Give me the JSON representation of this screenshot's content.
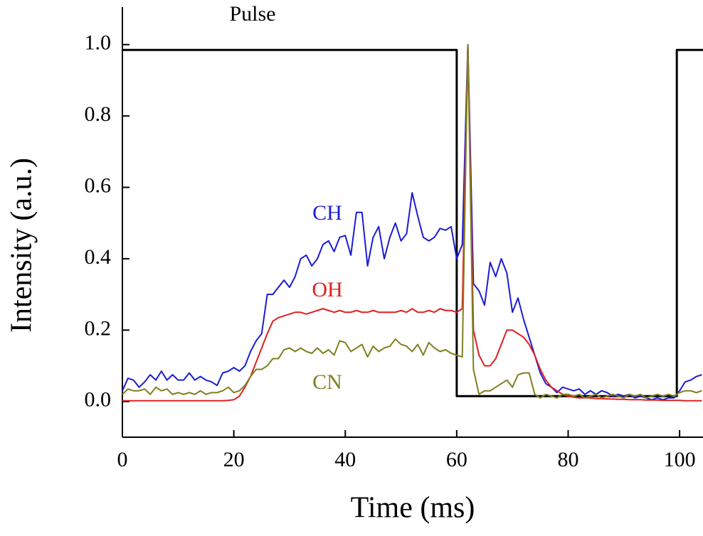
{
  "chart_data": {
    "type": "line",
    "xlabel": "Time (ms)",
    "ylabel": "Intensity (a.u.)",
    "xlim": [
      0,
      104.2
    ],
    "ylim": [
      -0.1,
      1.105
    ],
    "xticks": [
      0,
      20,
      40,
      60,
      80,
      100
    ],
    "yticks": [
      {
        "value": 0,
        "label": "0.0"
      },
      0.2,
      0.4,
      0.6,
      0.8,
      {
        "value": 1,
        "label": "1.0"
      }
    ],
    "x": [
      0,
      1,
      2,
      3,
      4,
      5,
      6,
      7,
      8,
      9,
      10,
      11,
      12,
      13,
      14,
      15,
      16,
      17,
      18,
      19,
      20,
      21,
      22,
      23,
      24,
      25,
      26,
      27,
      28,
      29,
      30,
      31,
      32,
      33,
      34,
      35,
      36,
      37,
      38,
      39,
      40,
      41,
      42,
      43,
      44,
      45,
      46,
      47,
      48,
      49,
      50,
      51,
      52,
      53,
      54,
      55,
      56,
      57,
      58,
      59,
      60,
      61,
      62,
      63,
      64,
      65,
      66,
      67,
      68,
      69,
      70,
      71,
      72,
      73,
      74,
      75,
      76,
      77,
      78,
      79,
      80,
      81,
      82,
      83,
      84,
      85,
      86,
      87,
      88,
      89,
      90,
      91,
      92,
      93,
      94,
      95,
      96,
      97,
      98,
      99,
      100,
      101,
      102,
      103,
      104
    ],
    "series": [
      {
        "name": "Pulse",
        "color": "#000000",
        "x": [
          0,
          60,
          60,
          99.5,
          99.5,
          104.2
        ],
        "values": [
          0.985,
          0.985,
          0.015,
          0.015,
          0.985,
          0.985
        ]
      },
      {
        "name": "CH",
        "color": "#1c1cd6",
        "values": [
          0.03,
          0.065,
          0.06,
          0.04,
          0.055,
          0.075,
          0.06,
          0.085,
          0.06,
          0.075,
          0.06,
          0.06,
          0.08,
          0.06,
          0.07,
          0.06,
          0.055,
          0.045,
          0.08,
          0.085,
          0.095,
          0.085,
          0.1,
          0.14,
          0.17,
          0.19,
          0.3,
          0.3,
          0.32,
          0.34,
          0.32,
          0.35,
          0.4,
          0.41,
          0.38,
          0.4,
          0.44,
          0.45,
          0.42,
          0.46,
          0.465,
          0.41,
          0.53,
          0.53,
          0.38,
          0.46,
          0.49,
          0.4,
          0.46,
          0.5,
          0.45,
          0.47,
          0.585,
          0.52,
          0.46,
          0.45,
          0.46,
          0.485,
          0.48,
          0.49,
          0.4,
          0.44,
          1.0,
          0.33,
          0.31,
          0.27,
          0.39,
          0.35,
          0.4,
          0.36,
          0.25,
          0.29,
          0.23,
          0.18,
          0.13,
          0.08,
          0.05,
          0.04,
          0.025,
          0.04,
          0.035,
          0.03,
          0.035,
          0.02,
          0.03,
          0.02,
          0.03,
          0.025,
          0.015,
          0.02,
          0.015,
          0.02,
          0.01,
          0.015,
          0.01,
          0.005,
          0.01,
          0.005,
          0.01,
          0.01,
          0.03,
          0.055,
          0.06,
          0.07,
          0.075
        ]
      },
      {
        "name": "OH",
        "color": "#e02020",
        "values": [
          0.002,
          0.002,
          0.002,
          0.002,
          0.002,
          0.002,
          0.002,
          0.002,
          0.002,
          0.002,
          0.002,
          0.002,
          0.002,
          0.002,
          0.002,
          0.002,
          0.002,
          0.002,
          0.002,
          0.003,
          0.005,
          0.015,
          0.04,
          0.07,
          0.11,
          0.15,
          0.19,
          0.225,
          0.235,
          0.24,
          0.245,
          0.25,
          0.25,
          0.245,
          0.25,
          0.255,
          0.26,
          0.255,
          0.25,
          0.255,
          0.25,
          0.25,
          0.255,
          0.25,
          0.25,
          0.255,
          0.25,
          0.25,
          0.25,
          0.25,
          0.255,
          0.25,
          0.26,
          0.25,
          0.25,
          0.255,
          0.25,
          0.26,
          0.255,
          0.255,
          0.25,
          0.26,
          1.0,
          0.2,
          0.13,
          0.1,
          0.1,
          0.12,
          0.16,
          0.2,
          0.2,
          0.19,
          0.18,
          0.16,
          0.13,
          0.09,
          0.06,
          0.04,
          0.03,
          0.02,
          0.015,
          0.012,
          0.01,
          0.01,
          0.01,
          0.008,
          0.008,
          0.007,
          0.007,
          0.006,
          0.006,
          0.005,
          0.005,
          0.005,
          0.004,
          0.004,
          0.004,
          0.003,
          0.003,
          0.003,
          0.003,
          0.002,
          0.002,
          0.002,
          0.002
        ]
      },
      {
        "name": "CN",
        "color": "#808020",
        "values": [
          0.02,
          0.035,
          0.03,
          0.03,
          0.035,
          0.02,
          0.04,
          0.03,
          0.035,
          0.02,
          0.025,
          0.02,
          0.025,
          0.02,
          0.03,
          0.02,
          0.025,
          0.025,
          0.03,
          0.04,
          0.025,
          0.03,
          0.045,
          0.07,
          0.09,
          0.09,
          0.1,
          0.12,
          0.12,
          0.145,
          0.15,
          0.14,
          0.15,
          0.14,
          0.135,
          0.15,
          0.135,
          0.145,
          0.13,
          0.17,
          0.165,
          0.14,
          0.15,
          0.16,
          0.125,
          0.155,
          0.14,
          0.15,
          0.155,
          0.175,
          0.16,
          0.155,
          0.14,
          0.16,
          0.13,
          0.165,
          0.15,
          0.14,
          0.145,
          0.135,
          0.13,
          0.125,
          1.0,
          0.09,
          0.02,
          0.03,
          0.03,
          0.04,
          0.05,
          0.06,
          0.04,
          0.075,
          0.08,
          0.08,
          0.02,
          0.01,
          0.02,
          0.015,
          0.01,
          0.02,
          0.02,
          0.015,
          0.02,
          0.01,
          0.015,
          0.02,
          0.01,
          0.015,
          0.02,
          0.015,
          0.01,
          0.02,
          0.015,
          0.02,
          0.01,
          0.015,
          0.02,
          0.015,
          0.02,
          0.015,
          0.025,
          0.03,
          0.03,
          0.025,
          0.03
        ]
      }
    ]
  }
}
